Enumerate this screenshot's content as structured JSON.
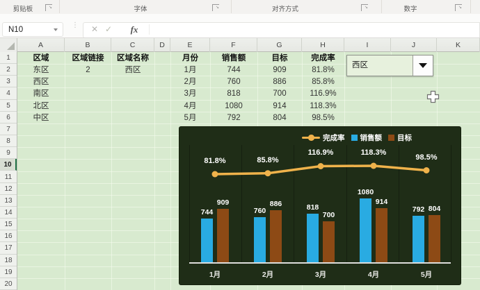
{
  "ribbon": {
    "groups": [
      {
        "label": "剪贴板"
      },
      {
        "label": "字体"
      },
      {
        "label": "对齐方式"
      },
      {
        "label": "数字"
      }
    ]
  },
  "formula_bar": {
    "name_box": "N10",
    "cancel": "✕",
    "enter": "✓",
    "fx": "fx",
    "formula": ""
  },
  "grid": {
    "columns": [
      "A",
      "B",
      "C",
      "D",
      "E",
      "F",
      "G",
      "H",
      "I",
      "J",
      "K"
    ],
    "rows": [
      1,
      2,
      3,
      4,
      5,
      6,
      7,
      8,
      9,
      10,
      11,
      12,
      13,
      14,
      15,
      16,
      17,
      18,
      19,
      20
    ],
    "active_row": 10,
    "selection": "N10"
  },
  "table": {
    "cells": [
      {
        "c": "A",
        "r": 1,
        "t": "区域",
        "b": true
      },
      {
        "c": "B",
        "r": 1,
        "t": "区域链接",
        "b": true
      },
      {
        "c": "C",
        "r": 1,
        "t": "区域名称",
        "b": true
      },
      {
        "c": "E",
        "r": 1,
        "t": "月份",
        "b": true
      },
      {
        "c": "F",
        "r": 1,
        "t": "销售额",
        "b": true
      },
      {
        "c": "G",
        "r": 1,
        "t": "目标",
        "b": true
      },
      {
        "c": "H",
        "r": 1,
        "t": "完成率",
        "b": true
      },
      {
        "c": "A",
        "r": 2,
        "t": "东区"
      },
      {
        "c": "B",
        "r": 2,
        "t": "2"
      },
      {
        "c": "C",
        "r": 2,
        "t": "西区"
      },
      {
        "c": "A",
        "r": 3,
        "t": "西区"
      },
      {
        "c": "A",
        "r": 4,
        "t": "南区"
      },
      {
        "c": "A",
        "r": 5,
        "t": "北区"
      },
      {
        "c": "A",
        "r": 6,
        "t": "中区"
      },
      {
        "c": "E",
        "r": 2,
        "t": "1月"
      },
      {
        "c": "F",
        "r": 2,
        "t": "744"
      },
      {
        "c": "G",
        "r": 2,
        "t": "909"
      },
      {
        "c": "H",
        "r": 2,
        "t": "81.8%"
      },
      {
        "c": "E",
        "r": 3,
        "t": "2月"
      },
      {
        "c": "F",
        "r": 3,
        "t": "760"
      },
      {
        "c": "G",
        "r": 3,
        "t": "886"
      },
      {
        "c": "H",
        "r": 3,
        "t": "85.8%"
      },
      {
        "c": "E",
        "r": 4,
        "t": "3月"
      },
      {
        "c": "F",
        "r": 4,
        "t": "818"
      },
      {
        "c": "G",
        "r": 4,
        "t": "700"
      },
      {
        "c": "H",
        "r": 4,
        "t": "116.9%"
      },
      {
        "c": "E",
        "r": 5,
        "t": "4月"
      },
      {
        "c": "F",
        "r": 5,
        "t": "1080"
      },
      {
        "c": "G",
        "r": 5,
        "t": "914"
      },
      {
        "c": "H",
        "r": 5,
        "t": "118.3%"
      },
      {
        "c": "E",
        "r": 6,
        "t": "5月"
      },
      {
        "c": "F",
        "r": 6,
        "t": "792"
      },
      {
        "c": "G",
        "r": 6,
        "t": "804"
      },
      {
        "c": "H",
        "r": 6,
        "t": "98.5%"
      }
    ]
  },
  "combo": {
    "value": "西区"
  },
  "chart_data": {
    "type": "combo-bar-line",
    "categories": [
      "1月",
      "2月",
      "3月",
      "4月",
      "5月"
    ],
    "series": [
      {
        "name": "销售额",
        "type": "bar",
        "color": "#29abe2",
        "values": [
          744,
          760,
          818,
          1080,
          792
        ]
      },
      {
        "name": "目标",
        "type": "bar",
        "color": "#8d4a15",
        "values": [
          909,
          886,
          700,
          914,
          804
        ]
      },
      {
        "name": "完成率",
        "type": "line",
        "color": "#efb24b",
        "values": [
          81.8,
          85.8,
          116.9,
          118.3,
          98.5
        ],
        "labels": [
          "81.8%",
          "85.8%",
          "116.9%",
          "118.3%",
          "98.5%"
        ]
      }
    ],
    "title": "",
    "legend_position": "top",
    "data_labels": true,
    "background": "#1f2d17",
    "axis_hidden": true
  },
  "colors": {
    "sheet_fill": "#d8eacf",
    "chart_bg": "#1f2d17",
    "bar_sales": "#29abe2",
    "bar_target": "#8d4a15",
    "line_rate": "#efb24b",
    "row_highlight_accent": "#1f7244"
  }
}
